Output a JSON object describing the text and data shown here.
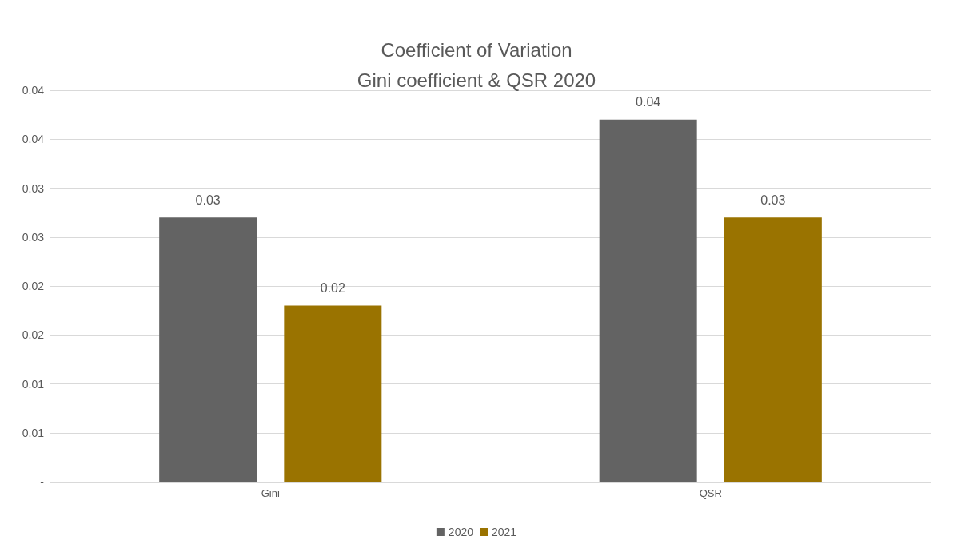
{
  "chart_data": {
    "type": "bar",
    "title": "Coefficient of Variation\nGini coefficient & QSR 2020",
    "categories": [
      "Gini",
      "QSR"
    ],
    "series": [
      {
        "name": "2020",
        "color": "#636363",
        "values": [
          0.027,
          0.037
        ],
        "value_labels": [
          "0.03",
          "0.04"
        ]
      },
      {
        "name": "2021",
        "color": "#9a7300",
        "values": [
          0.018,
          0.027
        ],
        "value_labels": [
          "0.02",
          "0.03"
        ]
      }
    ],
    "ylim": [
      0,
      0.04
    ],
    "yticks": [
      {
        "value": 0,
        "label": "-"
      },
      {
        "value": 0.005,
        "label": "0.01"
      },
      {
        "value": 0.01,
        "label": "0.01"
      },
      {
        "value": 0.015,
        "label": "0.02"
      },
      {
        "value": 0.02,
        "label": "0.02"
      },
      {
        "value": 0.025,
        "label": "0.03"
      },
      {
        "value": 0.03,
        "label": "0.03"
      },
      {
        "value": 0.035,
        "label": "0.04"
      },
      {
        "value": 0.04,
        "label": "0.04"
      }
    ],
    "grid": "y",
    "legend": "bottom"
  }
}
